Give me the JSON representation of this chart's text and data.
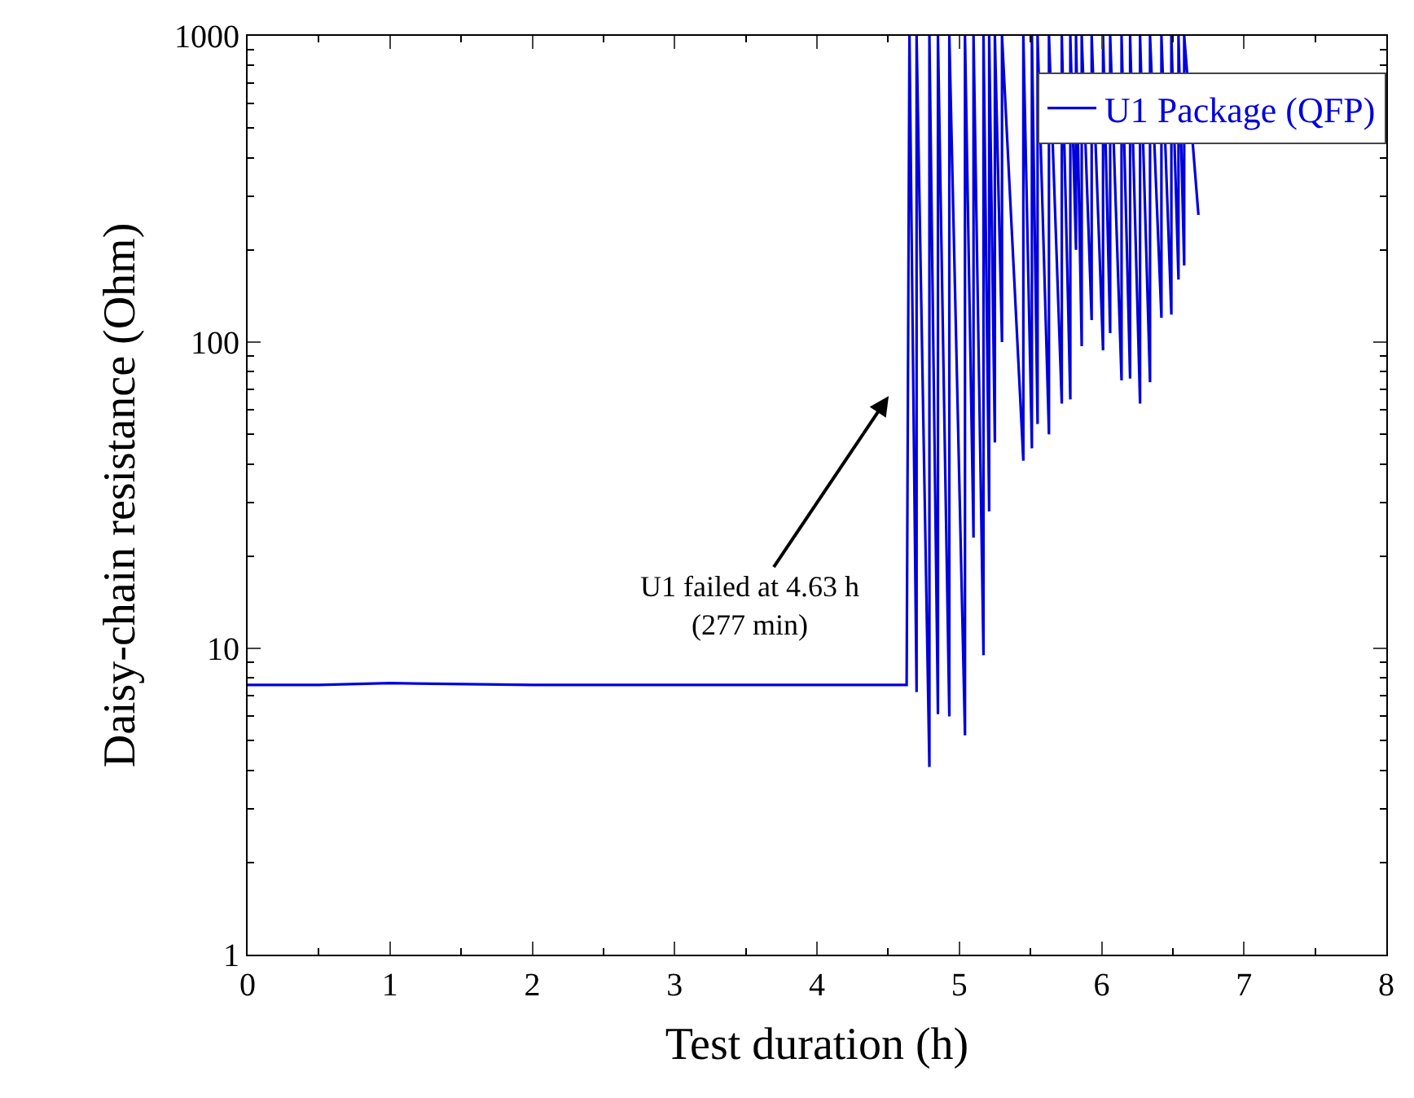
{
  "chart_data": {
    "type": "line",
    "xlabel": "Test duration (h)",
    "ylabel": "Daisy-chain resistance (Ohm)",
    "xlim": [
      0,
      8
    ],
    "xticks": [
      0,
      1,
      2,
      3,
      4,
      5,
      6,
      7,
      8
    ],
    "ylim": [
      1,
      1000
    ],
    "yticks": [
      1,
      10,
      100,
      1000
    ],
    "log": "y",
    "legend": "top right",
    "annotations": [
      "U1 failed at 4.63 h\n(277 min)"
    ],
    "series": [
      {
        "name": "U1 Package (QFP)",
        "color": "#0000dd",
        "x": [
          0,
          0.5,
          1.0,
          2.0,
          3.0,
          4.0,
          4.63,
          4.65,
          4.7,
          4.7,
          4.79,
          4.79,
          4.85,
          4.85,
          4.93,
          4.93,
          5.04,
          5.04,
          5.1,
          5.1,
          5.17,
          5.17,
          5.21,
          5.21,
          5.25,
          5.25,
          5.3,
          5.3,
          5.45,
          5.45,
          5.51,
          5.51,
          5.55,
          5.55,
          5.63,
          5.63,
          5.72,
          5.72,
          5.78,
          5.78,
          5.82,
          5.82,
          5.86,
          5.86,
          5.93,
          5.93,
          6.01,
          6.01,
          6.06,
          6.06,
          6.14,
          6.14,
          6.2,
          6.2,
          6.27,
          6.27,
          6.34,
          6.34,
          6.42,
          6.42,
          6.49,
          6.49,
          6.54,
          6.54,
          6.58,
          6.58,
          6.68
        ],
        "values": [
          7.6,
          7.6,
          7.7,
          7.6,
          7.6,
          7.6,
          7.6,
          1000,
          7.2,
          1000,
          4.1,
          1000,
          6.1,
          1000,
          6.0,
          1000,
          5.2,
          1000,
          23,
          1000,
          9.5,
          1000,
          28,
          1000,
          47,
          1000,
          100,
          1000,
          41,
          1000,
          45,
          1000,
          54,
          1000,
          50,
          1000,
          63,
          1000,
          65,
          1000,
          200,
          1000,
          97,
          1000,
          118,
          1000,
          94,
          1000,
          107,
          1000,
          75,
          1000,
          76,
          1000,
          63,
          1000,
          74,
          1000,
          120,
          1000,
          123,
          1000,
          160,
          1000,
          178,
          1000,
          260
        ]
      }
    ]
  }
}
